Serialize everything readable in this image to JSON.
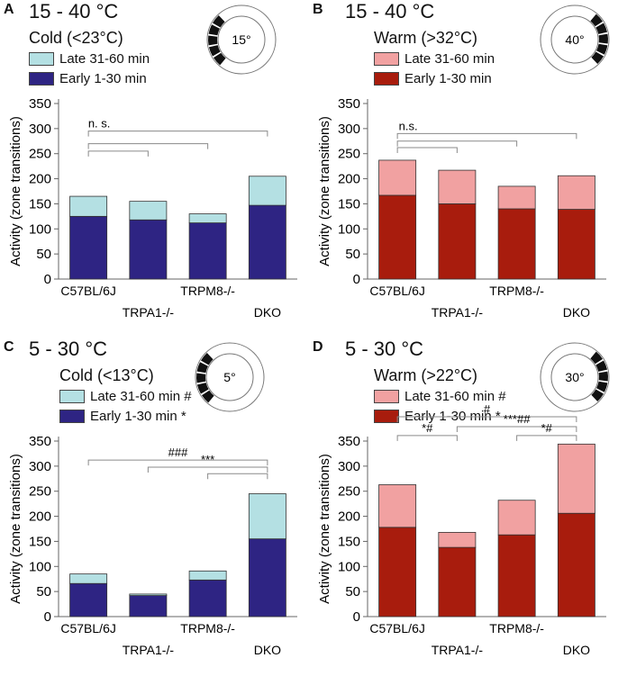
{
  "colors": {
    "cold_late": "#b4e0e3",
    "cold_early": "#2e2483",
    "warm_late": "#f1a1a1",
    "warm_early": "#a81c0d",
    "bracket": "#8a8a8a"
  },
  "y_label": "Activity (zone transitions)",
  "chart_data": [
    {
      "type": "bar",
      "panel": "A",
      "title": "15 - 40 °C",
      "subtitle": "Cold (<23°C)",
      "dial_label": "15°",
      "legend": [
        "Late 31-60 min",
        "Early 1-30 min"
      ],
      "categories": [
        "C57BL/6J",
        "TRPA1-/-",
        "TRPM8-/-",
        "DKO"
      ],
      "series": [
        {
          "name": "Early 1-30 min",
          "values": [
            125,
            118,
            112,
            147
          ]
        },
        {
          "name": "Late 31-60 min",
          "values": [
            40,
            37,
            18,
            58
          ]
        }
      ],
      "ylim": [
        0,
        350
      ],
      "yticks": [
        0,
        50,
        100,
        150,
        200,
        250,
        300,
        350
      ],
      "ylabel": "Activity (zone transitions)",
      "annotations": [
        {
          "from": 0,
          "to": 3,
          "level": 295,
          "label": "n. s."
        },
        {
          "from": 0,
          "to": 2,
          "level": 270,
          "label": ""
        },
        {
          "from": 0,
          "to": 1,
          "level": 255,
          "label": ""
        }
      ]
    },
    {
      "type": "bar",
      "panel": "B",
      "title": "15 - 40 °C",
      "subtitle": "Warm (>32°C)",
      "dial_label": "40°",
      "legend": [
        "Late 31-60 min",
        "Early 1-30 min"
      ],
      "categories": [
        "C57BL/6J",
        "TRPA1-/-",
        "TRPM8-/-",
        "DKO"
      ],
      "series": [
        {
          "name": "Early 1-30 min",
          "values": [
            167,
            150,
            140,
            139
          ]
        },
        {
          "name": "Late 31-60 min",
          "values": [
            70,
            67,
            45,
            67
          ]
        }
      ],
      "ylim": [
        0,
        350
      ],
      "yticks": [
        0,
        50,
        100,
        150,
        200,
        250,
        300,
        350
      ],
      "ylabel": "Activity (zone transitions)",
      "annotations": [
        {
          "from": 0,
          "to": 3,
          "level": 290,
          "label": "n.s."
        },
        {
          "from": 0,
          "to": 2,
          "level": 275,
          "label": ""
        },
        {
          "from": 0,
          "to": 1,
          "level": 262,
          "label": ""
        }
      ]
    },
    {
      "type": "bar",
      "panel": "C",
      "title": "5 - 30 °C",
      "subtitle": "Cold (<13°C)",
      "dial_label": "5°",
      "legend": [
        "Late 31-60 min #",
        "Early 1-30 min *"
      ],
      "categories": [
        "C57BL/6J",
        "TRPA1-/-",
        "TRPM8-/-",
        "DKO"
      ],
      "series": [
        {
          "name": "Early 1-30 min",
          "values": [
            66,
            42,
            73,
            155
          ]
        },
        {
          "name": "Late 31-60 min",
          "values": [
            19,
            3,
            18,
            90
          ]
        }
      ],
      "ylim": [
        0,
        350
      ],
      "yticks": [
        0,
        50,
        100,
        150,
        200,
        250,
        300,
        350
      ],
      "ylabel": "Activity (zone transitions)",
      "annotations": [
        {
          "from": 0,
          "to": 3,
          "level": 312,
          "label": "###"
        },
        {
          "from": 1,
          "to": 3,
          "level": 298,
          "label": "***"
        },
        {
          "from": 2,
          "to": 3,
          "level": 285,
          "label": ""
        }
      ]
    },
    {
      "type": "bar",
      "panel": "D",
      "title": "5 - 30 °C",
      "subtitle": "Warm (>22°C)",
      "dial_label": "30°",
      "legend": [
        "Late 31-60 min #",
        "Early 1-30 min *"
      ],
      "categories": [
        "C57BL/6J",
        "TRPA1-/-",
        "TRPM8-/-",
        "DKO"
      ],
      "series": [
        {
          "name": "Early 1-30 min",
          "values": [
            178,
            138,
            163,
            206
          ]
        },
        {
          "name": "Late 31-60 min",
          "values": [
            85,
            30,
            69,
            138
          ]
        }
      ],
      "ylim": [
        0,
        350
      ],
      "yticks": [
        0,
        50,
        100,
        150,
        200,
        250,
        300,
        350
      ],
      "ylabel": "Activity (zone transitions)",
      "annotations": [
        {
          "from": 0,
          "to": 3,
          "level": 390,
          "label": "#"
        },
        {
          "from": 1,
          "to": 3,
          "level": 370,
          "label": "***##"
        },
        {
          "from": 0,
          "to": 1,
          "level": 352,
          "label": "*#"
        },
        {
          "from": 2,
          "to": 3,
          "level": 352,
          "label": "*#"
        }
      ]
    }
  ]
}
